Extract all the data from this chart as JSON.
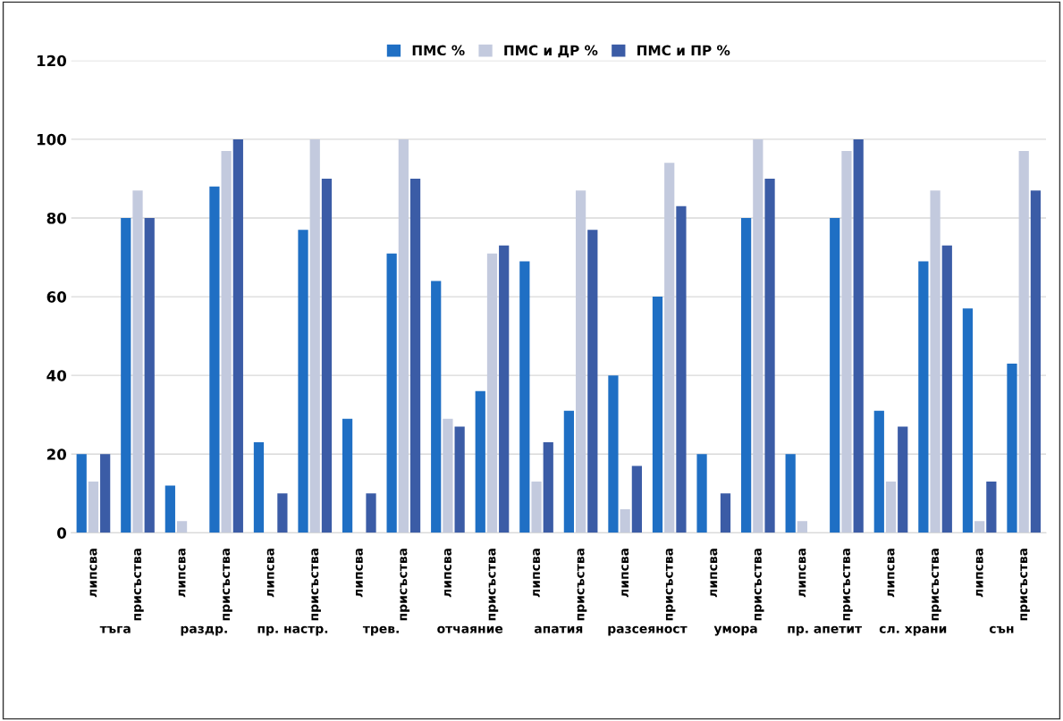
{
  "chart_data": {
    "type": "bar",
    "categories": [
      "липсва",
      "присъства",
      "липсва",
      "присъства",
      "липсва",
      "присъства",
      "липсва",
      "присъства",
      "липсва",
      "присъства",
      "липсва",
      "присъства",
      "липсва",
      "присъства",
      "липсва",
      "присъства",
      "липсва",
      "присъства",
      "липсва",
      "присъства",
      "липсва",
      "присъства"
    ],
    "series": [
      {
        "name": "ПМС %",
        "color": "#1f6fc4",
        "values": [
          20,
          80,
          12,
          88,
          23,
          77,
          29,
          71,
          64,
          36,
          69,
          31,
          40,
          60,
          20,
          80,
          20,
          80,
          31,
          69,
          57,
          43
        ]
      },
      {
        "name": "ПМС и ДР %",
        "color": "#c3cade",
        "values": [
          13,
          87,
          3,
          97,
          0,
          100,
          0,
          100,
          29,
          71,
          13,
          87,
          6,
          94,
          0,
          100,
          3,
          97,
          13,
          87,
          3,
          97
        ]
      },
      {
        "name": "ПМС и ПР %",
        "color": "#3b5ca6",
        "values": [
          20,
          80,
          0,
          100,
          10,
          90,
          10,
          90,
          27,
          73,
          23,
          77,
          17,
          83,
          10,
          90,
          0,
          100,
          27,
          73,
          13,
          87
        ]
      }
    ],
    "annotations": [
      "тъга",
      "раздр.",
      "пр. настр.",
      "трев.",
      "отчаяние",
      "апатия",
      "разсеяност",
      "умора",
      "пр. апетит",
      "сл. храни",
      "сън"
    ],
    "ylim": [
      0,
      120
    ],
    "yticks": [
      0,
      20,
      40,
      60,
      80,
      100,
      120
    ],
    "grid": "y",
    "legend": "top"
  }
}
